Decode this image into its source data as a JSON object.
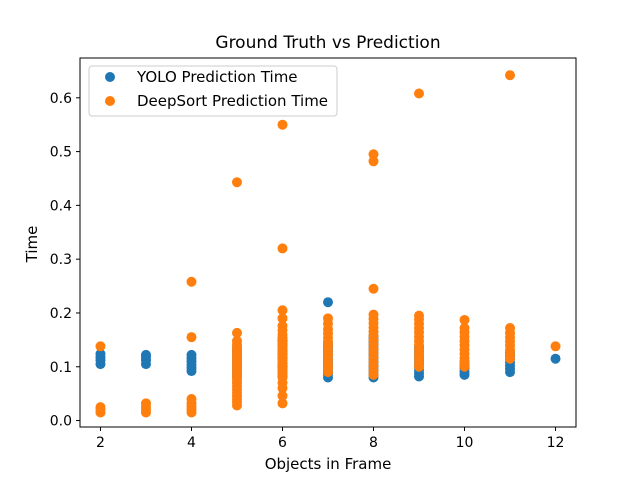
{
  "chart_data": {
    "type": "scatter",
    "title": "Ground Truth vs Prediction",
    "xlabel": "Objects in Frame",
    "ylabel": "Time",
    "xlim": [
      1.55,
      12.45
    ],
    "ylim": [
      -0.012,
      0.674
    ],
    "xticks": [
      2,
      4,
      6,
      8,
      10,
      12
    ],
    "yticks": [
      0.0,
      0.1,
      0.2,
      0.3,
      0.4,
      0.5,
      0.6
    ],
    "ytick_labels": [
      "0.0",
      "0.1",
      "0.2",
      "0.3",
      "0.4",
      "0.5",
      "0.6"
    ],
    "grid": false,
    "legend_position": "upper-left",
    "series": [
      {
        "name": "YOLO Prediction Time",
        "color": "#1f77b4",
        "points": [
          [
            2,
            0.105
          ],
          [
            2,
            0.112
          ],
          [
            2,
            0.118
          ],
          [
            2,
            0.124
          ],
          [
            3,
            0.105
          ],
          [
            3,
            0.112
          ],
          [
            3,
            0.118
          ],
          [
            3,
            0.122
          ],
          [
            4,
            0.092
          ],
          [
            4,
            0.098
          ],
          [
            4,
            0.104
          ],
          [
            4,
            0.11
          ],
          [
            4,
            0.116
          ],
          [
            4,
            0.122
          ],
          [
            5,
            0.082
          ],
          [
            5,
            0.088
          ],
          [
            5,
            0.094
          ],
          [
            5,
            0.1
          ],
          [
            5,
            0.106
          ],
          [
            5,
            0.112
          ],
          [
            5,
            0.118
          ],
          [
            5,
            0.124
          ],
          [
            5,
            0.13
          ],
          [
            5,
            0.136
          ],
          [
            6,
            0.082
          ],
          [
            6,
            0.088
          ],
          [
            6,
            0.094
          ],
          [
            6,
            0.1
          ],
          [
            6,
            0.106
          ],
          [
            6,
            0.112
          ],
          [
            6,
            0.118
          ],
          [
            6,
            0.124
          ],
          [
            6,
            0.13
          ],
          [
            6,
            0.136
          ],
          [
            6,
            0.142
          ],
          [
            6,
            0.148
          ],
          [
            6,
            0.154
          ],
          [
            7,
            0.08
          ],
          [
            7,
            0.086
          ],
          [
            7,
            0.092
          ],
          [
            7,
            0.098
          ],
          [
            7,
            0.104
          ],
          [
            7,
            0.11
          ],
          [
            7,
            0.116
          ],
          [
            7,
            0.122
          ],
          [
            7,
            0.128
          ],
          [
            7,
            0.134
          ],
          [
            7,
            0.14
          ],
          [
            7,
            0.146
          ],
          [
            7,
            0.22
          ],
          [
            8,
            0.08
          ],
          [
            8,
            0.086
          ],
          [
            8,
            0.092
          ],
          [
            8,
            0.098
          ],
          [
            8,
            0.104
          ],
          [
            8,
            0.11
          ],
          [
            8,
            0.116
          ],
          [
            8,
            0.122
          ],
          [
            8,
            0.128
          ],
          [
            8,
            0.134
          ],
          [
            8,
            0.14
          ],
          [
            8,
            0.146
          ],
          [
            8,
            0.152
          ],
          [
            8,
            0.158
          ],
          [
            9,
            0.082
          ],
          [
            9,
            0.088
          ],
          [
            9,
            0.094
          ],
          [
            9,
            0.1
          ],
          [
            9,
            0.106
          ],
          [
            9,
            0.112
          ],
          [
            9,
            0.118
          ],
          [
            9,
            0.124
          ],
          [
            9,
            0.13
          ],
          [
            9,
            0.136
          ],
          [
            10,
            0.085
          ],
          [
            10,
            0.091
          ],
          [
            10,
            0.097
          ],
          [
            10,
            0.103
          ],
          [
            10,
            0.109
          ],
          [
            11,
            0.09
          ],
          [
            11,
            0.096
          ],
          [
            11,
            0.102
          ],
          [
            11,
            0.108
          ],
          [
            11,
            0.114
          ],
          [
            11,
            0.12
          ],
          [
            11,
            0.126
          ],
          [
            12,
            0.115
          ]
        ]
      },
      {
        "name": "DeepSort Prediction Time",
        "color": "#ff7f0e",
        "points": [
          [
            2,
            0.015
          ],
          [
            2,
            0.02
          ],
          [
            2,
            0.025
          ],
          [
            2,
            0.138
          ],
          [
            3,
            0.015
          ],
          [
            3,
            0.02
          ],
          [
            3,
            0.026
          ],
          [
            3,
            0.032
          ],
          [
            4,
            0.015
          ],
          [
            4,
            0.02
          ],
          [
            4,
            0.026
          ],
          [
            4,
            0.032
          ],
          [
            4,
            0.04
          ],
          [
            4,
            0.155
          ],
          [
            4,
            0.258
          ],
          [
            5,
            0.028
          ],
          [
            5,
            0.034
          ],
          [
            5,
            0.04
          ],
          [
            5,
            0.046
          ],
          [
            5,
            0.052
          ],
          [
            5,
            0.058
          ],
          [
            5,
            0.064
          ],
          [
            5,
            0.07
          ],
          [
            5,
            0.076
          ],
          [
            5,
            0.082
          ],
          [
            5,
            0.088
          ],
          [
            5,
            0.094
          ],
          [
            5,
            0.1
          ],
          [
            5,
            0.106
          ],
          [
            5,
            0.112
          ],
          [
            5,
            0.118
          ],
          [
            5,
            0.124
          ],
          [
            5,
            0.13
          ],
          [
            5,
            0.136
          ],
          [
            5,
            0.142
          ],
          [
            5,
            0.148
          ],
          [
            5,
            0.163
          ],
          [
            5,
            0.443
          ],
          [
            6,
            0.032
          ],
          [
            6,
            0.046
          ],
          [
            6,
            0.06
          ],
          [
            6,
            0.07
          ],
          [
            6,
            0.08
          ],
          [
            6,
            0.088
          ],
          [
            6,
            0.096
          ],
          [
            6,
            0.104
          ],
          [
            6,
            0.112
          ],
          [
            6,
            0.12
          ],
          [
            6,
            0.128
          ],
          [
            6,
            0.136
          ],
          [
            6,
            0.144
          ],
          [
            6,
            0.152
          ],
          [
            6,
            0.16
          ],
          [
            6,
            0.168
          ],
          [
            6,
            0.176
          ],
          [
            6,
            0.19
          ],
          [
            6,
            0.205
          ],
          [
            6,
            0.32
          ],
          [
            6,
            0.55
          ],
          [
            7,
            0.09
          ],
          [
            7,
            0.098
          ],
          [
            7,
            0.106
          ],
          [
            7,
            0.114
          ],
          [
            7,
            0.122
          ],
          [
            7,
            0.13
          ],
          [
            7,
            0.138
          ],
          [
            7,
            0.146
          ],
          [
            7,
            0.154
          ],
          [
            7,
            0.162
          ],
          [
            7,
            0.17
          ],
          [
            7,
            0.18
          ],
          [
            7,
            0.19
          ],
          [
            8,
            0.085
          ],
          [
            8,
            0.093
          ],
          [
            8,
            0.101
          ],
          [
            8,
            0.109
          ],
          [
            8,
            0.117
          ],
          [
            8,
            0.125
          ],
          [
            8,
            0.133
          ],
          [
            8,
            0.141
          ],
          [
            8,
            0.149
          ],
          [
            8,
            0.157
          ],
          [
            8,
            0.165
          ],
          [
            8,
            0.173
          ],
          [
            8,
            0.181
          ],
          [
            8,
            0.189
          ],
          [
            8,
            0.197
          ],
          [
            8,
            0.245
          ],
          [
            8,
            0.482
          ],
          [
            8,
            0.495
          ],
          [
            9,
            0.1
          ],
          [
            9,
            0.108
          ],
          [
            9,
            0.116
          ],
          [
            9,
            0.124
          ],
          [
            9,
            0.132
          ],
          [
            9,
            0.14
          ],
          [
            9,
            0.148
          ],
          [
            9,
            0.156
          ],
          [
            9,
            0.164
          ],
          [
            9,
            0.172
          ],
          [
            9,
            0.18
          ],
          [
            9,
            0.188
          ],
          [
            9,
            0.195
          ],
          [
            9,
            0.608
          ],
          [
            10,
            0.1
          ],
          [
            10,
            0.108
          ],
          [
            10,
            0.116
          ],
          [
            10,
            0.124
          ],
          [
            10,
            0.132
          ],
          [
            10,
            0.14
          ],
          [
            10,
            0.148
          ],
          [
            10,
            0.156
          ],
          [
            10,
            0.164
          ],
          [
            10,
            0.172
          ],
          [
            10,
            0.187
          ],
          [
            11,
            0.115
          ],
          [
            11,
            0.123
          ],
          [
            11,
            0.131
          ],
          [
            11,
            0.139
          ],
          [
            11,
            0.147
          ],
          [
            11,
            0.155
          ],
          [
            11,
            0.163
          ],
          [
            11,
            0.172
          ],
          [
            11,
            0.642
          ],
          [
            12,
            0.138
          ]
        ]
      }
    ]
  }
}
